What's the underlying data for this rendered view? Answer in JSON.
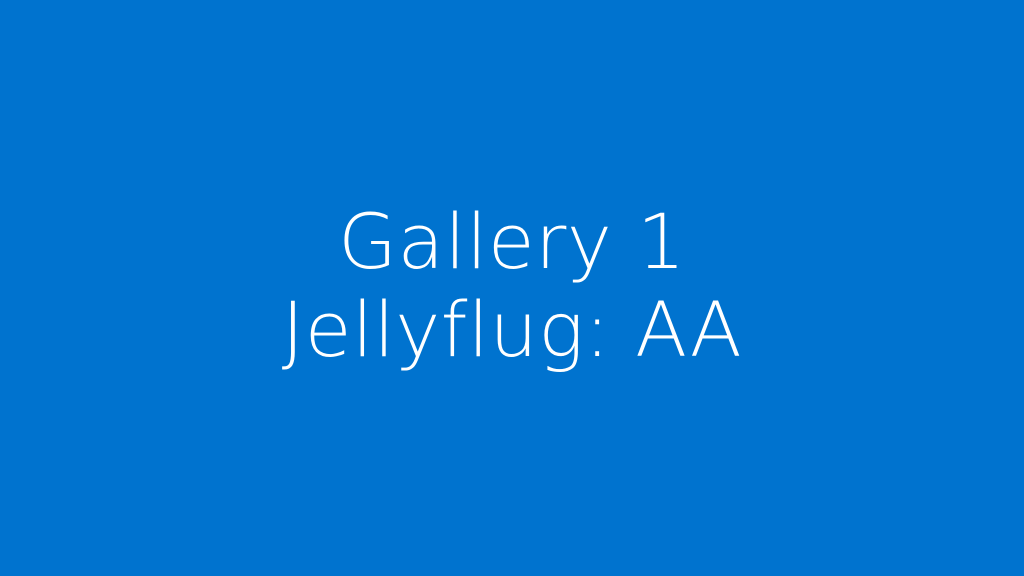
{
  "slide": {
    "background": "#0073CF",
    "text_color": "#FFFFFF",
    "title_line_1": "Gallery 1",
    "title_line_2": "Jellyflug: AA"
  }
}
